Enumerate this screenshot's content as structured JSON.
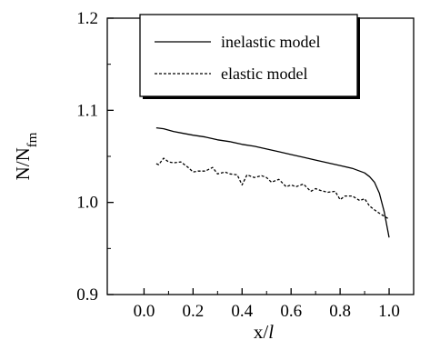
{
  "chart_data": {
    "type": "line",
    "title": "",
    "xlabel": "x/l",
    "ylabel": "N/N_fm",
    "xlim": [
      -0.15,
      1.1
    ],
    "ylim": [
      0.9,
      1.2
    ],
    "xticks": [
      "0.0",
      "0.2",
      "0.4",
      "0.6",
      "0.8",
      "1.0"
    ],
    "yticks": [
      "0.9",
      "1.0",
      "1.1",
      "1.2"
    ],
    "grid": false,
    "legend": {
      "placement": "top-right"
    },
    "series": [
      {
        "name": "inelastic model",
        "style": "solid",
        "color": "#000000",
        "x": [
          0.05,
          0.08,
          0.12,
          0.16,
          0.2,
          0.25,
          0.3,
          0.35,
          0.4,
          0.45,
          0.5,
          0.55,
          0.6,
          0.65,
          0.7,
          0.75,
          0.8,
          0.85,
          0.88,
          0.9,
          0.92,
          0.94,
          0.96,
          0.98,
          1.0
        ],
        "values": [
          1.081,
          1.08,
          1.077,
          1.075,
          1.073,
          1.071,
          1.068,
          1.066,
          1.063,
          1.061,
          1.058,
          1.055,
          1.052,
          1.049,
          1.046,
          1.043,
          1.04,
          1.037,
          1.034,
          1.032,
          1.028,
          1.022,
          1.01,
          0.99,
          0.962
        ]
      },
      {
        "name": "elastic model",
        "style": "dashed",
        "color": "#000000",
        "x": [
          0.05,
          0.06,
          0.08,
          0.1,
          0.12,
          0.15,
          0.18,
          0.2,
          0.22,
          0.25,
          0.28,
          0.3,
          0.33,
          0.35,
          0.38,
          0.4,
          0.42,
          0.45,
          0.48,
          0.5,
          0.52,
          0.55,
          0.58,
          0.6,
          0.62,
          0.65,
          0.68,
          0.7,
          0.72,
          0.75,
          0.78,
          0.8,
          0.82,
          0.85,
          0.88,
          0.9,
          0.92,
          0.95,
          0.98,
          1.0
        ],
        "values": [
          1.042,
          1.041,
          1.048,
          1.044,
          1.043,
          1.044,
          1.038,
          1.033,
          1.034,
          1.034,
          1.038,
          1.031,
          1.033,
          1.031,
          1.03,
          1.019,
          1.03,
          1.027,
          1.029,
          1.027,
          1.022,
          1.025,
          1.017,
          1.019,
          1.017,
          1.02,
          1.012,
          1.015,
          1.013,
          1.011,
          1.012,
          1.003,
          1.007,
          1.007,
          1.002,
          1.004,
          0.996,
          0.99,
          0.985,
          0.982
        ]
      }
    ]
  }
}
